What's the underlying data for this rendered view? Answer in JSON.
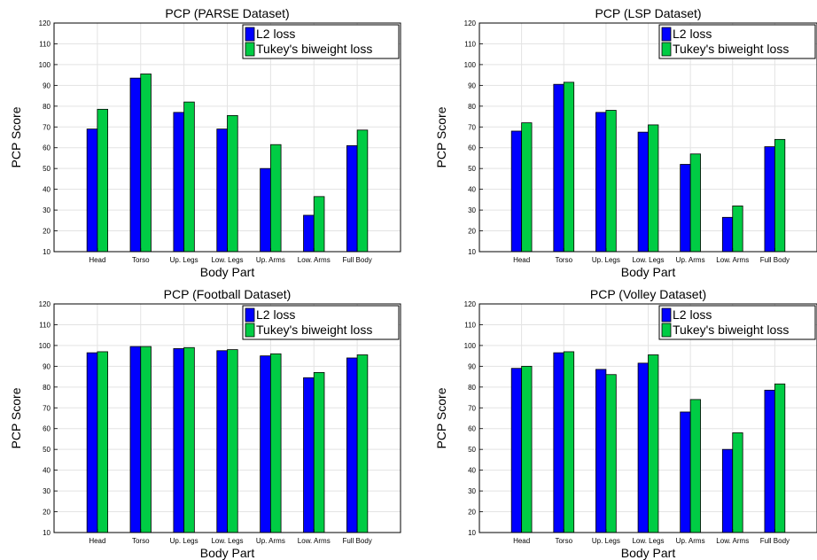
{
  "colors": {
    "l2": "#0000ff",
    "tukey": "#00cc44",
    "grid": "#e3e3e3",
    "axis": "#000000"
  },
  "chart_data": [
    {
      "type": "bar",
      "title": "PCP (PARSE Dataset)",
      "xlabel": "Body Part",
      "ylabel": "PCP Score",
      "ylim": [
        10,
        120
      ],
      "yticks": [
        10,
        20,
        30,
        40,
        50,
        60,
        70,
        80,
        90,
        100,
        110,
        120
      ],
      "grid": true,
      "legend_position": "top-right",
      "categories": [
        "Head",
        "Torso",
        "Up. Legs",
        "Low. Legs",
        "Up. Arms",
        "Low. Arms",
        "Full Body"
      ],
      "series": [
        {
          "name": "L2 loss",
          "values": [
            69,
            93.5,
            77,
            69,
            50,
            27.5,
            61
          ]
        },
        {
          "name": "Tukey's biweight loss",
          "values": [
            78.5,
            95.5,
            82,
            75.5,
            61.5,
            36.5,
            68.5
          ]
        }
      ]
    },
    {
      "type": "bar",
      "title": "PCP (LSP Dataset)",
      "xlabel": "Body Part",
      "ylabel": "PCP Score",
      "ylim": [
        10,
        120
      ],
      "yticks": [
        10,
        20,
        30,
        40,
        50,
        60,
        70,
        80,
        90,
        100,
        110,
        120
      ],
      "grid": true,
      "legend_position": "top-right",
      "categories": [
        "Head",
        "Torso",
        "Up. Legs",
        "Low. Legs",
        "Up. Arms",
        "Low. Arms",
        "Full Body"
      ],
      "series": [
        {
          "name": "L2 loss",
          "values": [
            68,
            90.5,
            77,
            67.5,
            52,
            26.5,
            60.5
          ]
        },
        {
          "name": "Tukey's biweight loss",
          "values": [
            72,
            91.5,
            78,
            71,
            57,
            32,
            64
          ]
        }
      ]
    },
    {
      "type": "bar",
      "title": "PCP (Football Dataset)",
      "xlabel": "Body Part",
      "ylabel": "PCP Score",
      "ylim": [
        10,
        120
      ],
      "yticks": [
        10,
        20,
        30,
        40,
        50,
        60,
        70,
        80,
        90,
        100,
        110,
        120
      ],
      "grid": true,
      "legend_position": "top-right",
      "categories": [
        "Head",
        "Torso",
        "Up. Legs",
        "Low. Legs",
        "Up. Arms",
        "Low. Arms",
        "Full Body"
      ],
      "series": [
        {
          "name": "L2 loss",
          "values": [
            96.5,
            99.5,
            98.5,
            97.5,
            95,
            84.5,
            94
          ]
        },
        {
          "name": "Tukey's biweight loss",
          "values": [
            97,
            99.5,
            99,
            98,
            96,
            87,
            95.5
          ]
        }
      ]
    },
    {
      "type": "bar",
      "title": "PCP (Volley Dataset)",
      "xlabel": "Body Part",
      "ylabel": "PCP Score",
      "ylim": [
        10,
        120
      ],
      "yticks": [
        10,
        20,
        30,
        40,
        50,
        60,
        70,
        80,
        90,
        100,
        110,
        120
      ],
      "grid": true,
      "legend_position": "top-right",
      "categories": [
        "Head",
        "Torso",
        "Up. Legs",
        "Low. Legs",
        "Up. Arms",
        "Low. Arms",
        "Full Body"
      ],
      "series": [
        {
          "name": "L2 loss",
          "values": [
            89,
            96.5,
            88.5,
            91.5,
            68,
            50,
            78.5
          ]
        },
        {
          "name": "Tukey's biweight loss",
          "values": [
            90,
            97,
            86,
            95.5,
            74,
            58,
            81.5
          ]
        }
      ]
    }
  ]
}
